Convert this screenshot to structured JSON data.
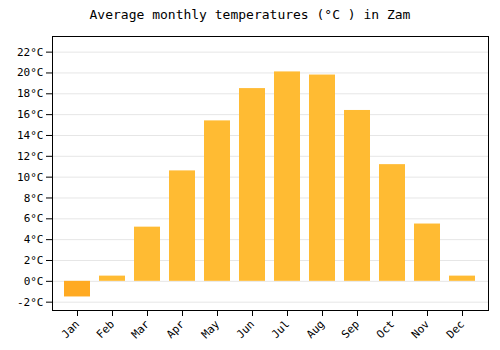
{
  "chart_data": {
    "type": "bar",
    "title": "Average monthly temperatures (°C ) in Zam",
    "categories": [
      "Jan",
      "Feb",
      "Mar",
      "Apr",
      "May",
      "Jun",
      "Jul",
      "Aug",
      "Sep",
      "Oct",
      "Nov",
      "Dec"
    ],
    "values": [
      -1.5,
      0.5,
      5.2,
      10.6,
      15.4,
      18.5,
      20.1,
      19.8,
      16.4,
      11.2,
      5.5,
      0.5
    ],
    "colors": [
      "#FFAA22",
      "#FFBB33",
      "#FFBB33",
      "#FFBB33",
      "#FFBB33",
      "#FFBB33",
      "#FFBB33",
      "#FFBB33",
      "#FFBB33",
      "#FFBB33",
      "#FFBB33",
      "#FFBB33"
    ],
    "ylim": [
      -2.8,
      23.5
    ],
    "yticks": [
      {
        "value": -2,
        "label": "-2°C"
      },
      {
        "value": 0,
        "label": "0°C"
      },
      {
        "value": 2,
        "label": "2°C"
      },
      {
        "value": 4,
        "label": "4°C"
      },
      {
        "value": 6,
        "label": "6°C"
      },
      {
        "value": 8,
        "label": "8°C"
      },
      {
        "value": 10,
        "label": "10°C"
      },
      {
        "value": 12,
        "label": "12°C"
      },
      {
        "value": 14,
        "label": "14°C"
      },
      {
        "value": 16,
        "label": "16°C"
      },
      {
        "value": 18,
        "label": "18°C"
      },
      {
        "value": 20,
        "label": "20°C"
      },
      {
        "value": 22,
        "label": "22°C"
      }
    ],
    "grid": true
  }
}
